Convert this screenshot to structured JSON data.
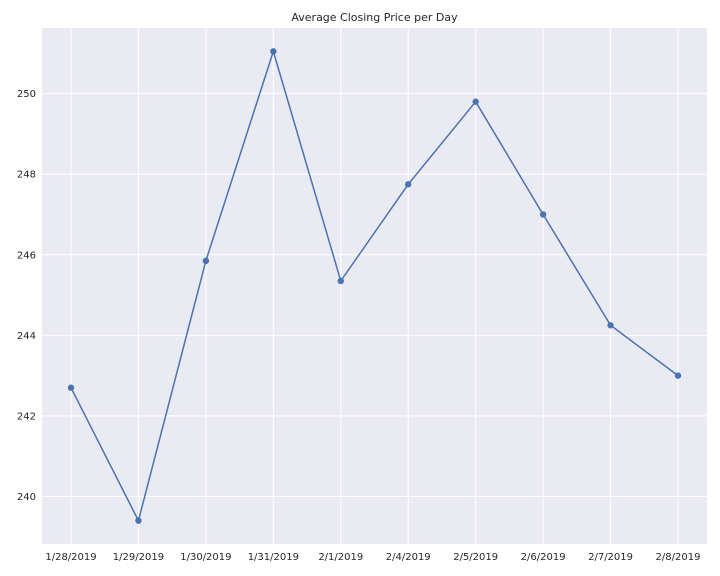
{
  "chart_data": {
    "type": "line",
    "title": "Average Closing Price per Day",
    "xlabel": "",
    "ylabel": "",
    "categories": [
      "1/28/2019",
      "1/29/2019",
      "1/30/2019",
      "1/31/2019",
      "2/1/2019",
      "2/4/2019",
      "2/5/2019",
      "2/6/2019",
      "2/7/2019",
      "2/8/2019"
    ],
    "series": [
      {
        "values": [
          242.7,
          239.4,
          245.85,
          251.05,
          245.35,
          247.75,
          249.8,
          247.0,
          244.25,
          243.0
        ]
      }
    ],
    "yticks": [
      240,
      242,
      244,
      246,
      248,
      250
    ],
    "ylim": [
      238.82,
      251.63
    ],
    "grid": true,
    "line_color": "#4c72b0",
    "background_color": "#eaeaf2",
    "grid_color": "#ffffff"
  }
}
